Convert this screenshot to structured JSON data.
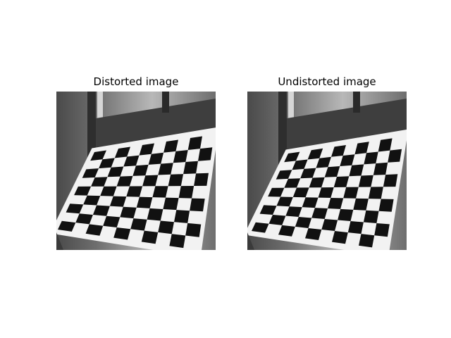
{
  "figure": {
    "panels": [
      {
        "title": "Distorted image",
        "variant": "distorted"
      },
      {
        "title": "Undistorted image",
        "variant": "undistorted"
      }
    ]
  },
  "scene": {
    "board_rows": 9,
    "board_cols": 10,
    "colors": {
      "wall_dark": "#4a4a4a",
      "wall_mid": "#6e6e6e",
      "wall_light": "#b8b8b8",
      "cabinet": "#3e3e3e",
      "board_white": "#f2f2f2",
      "square_black": "#111111"
    }
  }
}
